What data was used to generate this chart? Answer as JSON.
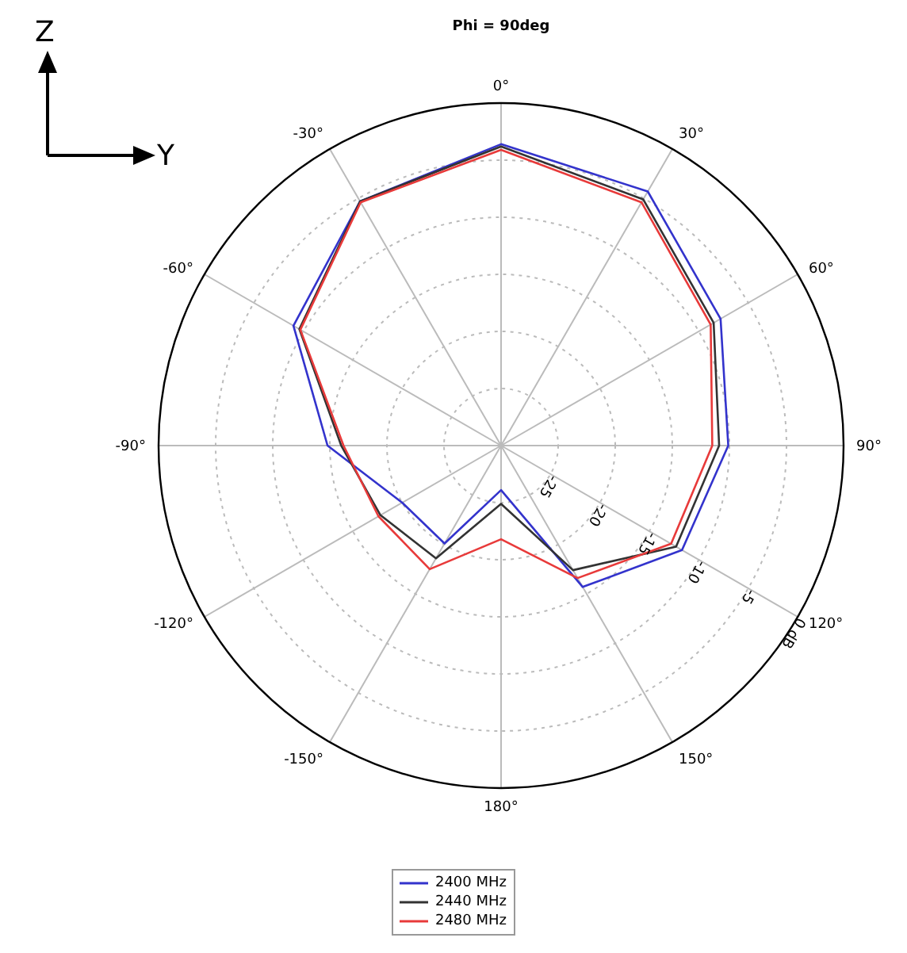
{
  "chart_data": {
    "type": "radar",
    "title": "Phi = 90deg",
    "categories": [
      "0°",
      "30°",
      "60°",
      "90°",
      "120°",
      "150°",
      "180°",
      "-150°",
      "-120°",
      "-90°",
      "-60°",
      "-30°"
    ],
    "series": [
      {
        "name": "2400 MHz",
        "color": "#3333cc",
        "values": [
          -3.6,
          -4.3,
          -7.8,
          -10.1,
          -11.7,
          -15.7,
          -26.1,
          -20.1,
          -20.0,
          -14.8,
          -9.0,
          -5.3
        ]
      },
      {
        "name": "2440 MHz",
        "color": "#333333",
        "values": [
          -3.8,
          -5.1,
          -8.5,
          -10.9,
          -12.3,
          -17.4,
          -24.9,
          -18.6,
          -17.8,
          -16.0,
          -9.6,
          -5.3
        ]
      },
      {
        "name": "2480 MHz",
        "color": "#e83a3a",
        "values": [
          -4.1,
          -5.4,
          -8.8,
          -11.5,
          -12.8,
          -16.6,
          -21.8,
          -17.5,
          -17.6,
          -16.2,
          -9.7,
          -5.4
        ]
      }
    ],
    "ylim": [
      -30,
      0
    ],
    "yticks": [
      {
        "value": -25,
        "label": "-25"
      },
      {
        "value": -20,
        "label": "-20"
      },
      {
        "value": -15,
        "label": "-15"
      },
      {
        "value": -10,
        "label": "-10"
      },
      {
        "value": -5,
        "label": "-5"
      },
      {
        "value": 0,
        "label": "0 dB"
      }
    ],
    "grid": true,
    "legend": "bottom",
    "annotations": [
      "Z",
      "Y"
    ]
  }
}
